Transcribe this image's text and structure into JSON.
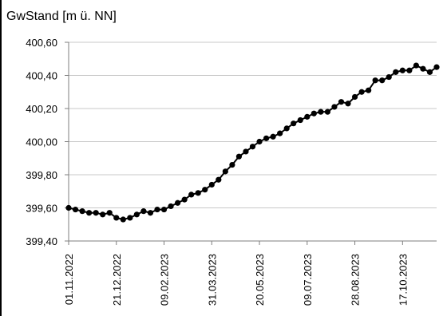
{
  "chart_data": {
    "type": "line",
    "title": "GwStand [m ü. NN]",
    "xlabel": "",
    "ylabel": "",
    "ylim": [
      399.4,
      400.6
    ],
    "y_ticks": [
      399.4,
      399.6,
      399.8,
      400.0,
      400.2,
      400.4,
      400.6
    ],
    "y_tick_labels": [
      "399,40",
      "399,60",
      "399,80",
      "400,00",
      "400,20",
      "400,40",
      "400,60"
    ],
    "x_tick_labels": [
      "01.11.2022",
      "21.12.2022",
      "09.02.2023",
      "31.03.2023",
      "20.05.2023",
      "09.07.2023",
      "28.08.2023",
      "17.10.2023"
    ],
    "grid": "horizontal",
    "legend": "none",
    "colors": {
      "line": "#000000",
      "marker": "#000000",
      "grid": "#c8c8c8",
      "axis": "#7f7f7f"
    },
    "series": [
      {
        "values": [
          399.6,
          399.59,
          399.58,
          399.57,
          399.57,
          399.56,
          399.57,
          399.54,
          399.53,
          399.54,
          399.56,
          399.58,
          399.57,
          399.59,
          399.59,
          399.61,
          399.63,
          399.65,
          399.68,
          399.69,
          399.71,
          399.74,
          399.77,
          399.82,
          399.86,
          399.91,
          399.94,
          399.97,
          400.0,
          400.02,
          400.03,
          400.05,
          400.08,
          400.11,
          400.13,
          400.15,
          400.17,
          400.18,
          400.18,
          400.21,
          400.24,
          400.23,
          400.27,
          400.3,
          400.31,
          400.37,
          400.37,
          400.39,
          400.42,
          400.43,
          400.43,
          400.46,
          400.44,
          400.42,
          400.45
        ]
      }
    ]
  }
}
